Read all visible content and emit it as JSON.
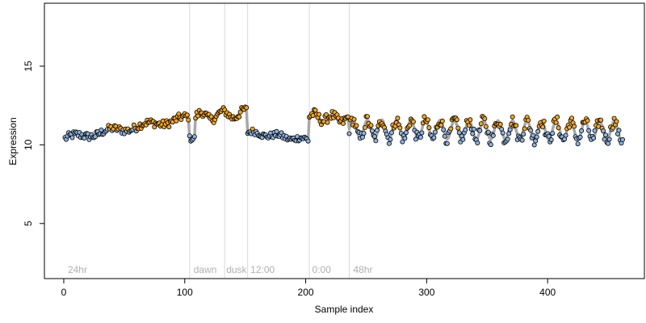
{
  "chart_data": {
    "type": "scatter",
    "xlabel": "Sample index",
    "ylabel": "Expression",
    "xlim": [
      -16,
      480
    ],
    "ylim": [
      1.5,
      19
    ],
    "xticks": [
      0,
      100,
      200,
      300,
      400
    ],
    "yticks": [
      5,
      10,
      15
    ],
    "vlines": [
      104,
      133,
      152,
      203,
      236
    ],
    "annotations": [
      {
        "x": 2,
        "label": "24hr"
      },
      {
        "x": 106,
        "label": "dawn"
      },
      {
        "x": 133,
        "label": "dusk"
      },
      {
        "x": 153,
        "label": "12:00"
      },
      {
        "x": 204,
        "label": "0:00"
      },
      {
        "x": 238,
        "label": "48hr"
      }
    ],
    "colors": {
      "above": "#f5a623",
      "below": "#8fb3e0",
      "fit": "#a8a8a8",
      "point_edge": "#000000",
      "vline": "#d9d9d9",
      "annotation": "#b0b0b0"
    },
    "baseline": 11.0,
    "segments": [
      {
        "x0": 1,
        "x1": 103,
        "base": 10.4,
        "trend": 1.3,
        "amp": 0.15,
        "period": 30,
        "noise": 0.25
      },
      {
        "x0": 104,
        "x1": 108,
        "base": 10.4,
        "trend": 0.0,
        "amp": 0.0,
        "period": 10,
        "noise": 0.2
      },
      {
        "x0": 109,
        "x1": 151,
        "base": 11.8,
        "trend": 0.2,
        "amp": 0.25,
        "period": 18,
        "noise": 0.25
      },
      {
        "x0": 152,
        "x1": 202,
        "base": 10.8,
        "trend": -0.5,
        "amp": 0.1,
        "period": 20,
        "noise": 0.2
      },
      {
        "x0": 203,
        "x1": 235,
        "base": 11.8,
        "trend": -0.2,
        "amp": 0.2,
        "period": 15,
        "noise": 0.3
      },
      {
        "x0": 236,
        "x1": 462,
        "base": 11.0,
        "trend": -0.1,
        "amp": 0.6,
        "period": 12,
        "noise": 0.35
      }
    ]
  }
}
